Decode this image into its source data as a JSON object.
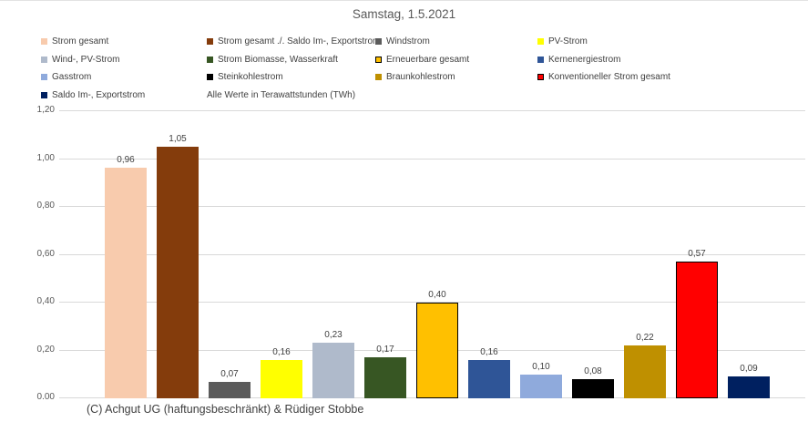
{
  "footer": "(C) Achgut UG (haftungsbeschränkt) & Rüdiger Stobbe",
  "colors": {
    "gridline": "#d9d9d9",
    "title_text": "#595959",
    "axis_text": "#595959",
    "value_label_text": "#404040",
    "legend_text": "#404040",
    "footer_text": "#3f3f3f",
    "bar_border": "#000000"
  },
  "chart_data": {
    "type": "bar",
    "title": "Samstag, 1.5.2021",
    "unit_note": "Alle Werte in Terawattstunden (TWh)",
    "xlabel": "",
    "ylabel": "",
    "ylim": [
      0,
      1.2
    ],
    "yticks": [
      0,
      0.2,
      0.4,
      0.6,
      0.8,
      1.0,
      1.2
    ],
    "ytick_labels": [
      "0,00",
      "0,20",
      "0,40",
      "0,60",
      "0,80",
      "1,00",
      "1,20"
    ],
    "grid": true,
    "legend_position": "top",
    "legend_columns": 4,
    "decimal_style": "comma",
    "series": [
      {
        "name": "Strom gesamt",
        "value": 0.96,
        "label": "0,96",
        "color": "#F8CBAD",
        "border": false
      },
      {
        "name": "Strom gesamt ./. Saldo Im-, Exportstrom",
        "value": 1.05,
        "label": "1,05",
        "color": "#843C0C",
        "border": false
      },
      {
        "name": "Windstrom",
        "value": 0.07,
        "label": "0,07",
        "color": "#5B5B5B",
        "border": false
      },
      {
        "name": "PV-Strom",
        "value": 0.16,
        "label": "0,16",
        "color": "#FFFF00",
        "border": false
      },
      {
        "name": "Wind-, PV-Strom",
        "value": 0.23,
        "label": "0,23",
        "color": "#AFBACB",
        "border": false
      },
      {
        "name": "Strom Biomasse, Wasserkraft",
        "value": 0.17,
        "label": "0,17",
        "color": "#375623",
        "border": false
      },
      {
        "name": "Erneuerbare gesamt",
        "value": 0.4,
        "label": "0,40",
        "color": "#FFC000",
        "border": true
      },
      {
        "name": "Kernenergiestrom",
        "value": 0.16,
        "label": "0,16",
        "color": "#2F5597",
        "border": false
      },
      {
        "name": "Gasstrom",
        "value": 0.1,
        "label": "0,10",
        "color": "#8FAADC",
        "border": false
      },
      {
        "name": "Steinkohlestrom",
        "value": 0.08,
        "label": "0,08",
        "color": "#000000",
        "border": false
      },
      {
        "name": "Braunkohlestrom",
        "value": 0.22,
        "label": "0,22",
        "color": "#BF9000",
        "border": false
      },
      {
        "name": "Konventioneller Strom gesamt",
        "value": 0.57,
        "label": "0,57",
        "color": "#FF0000",
        "border": true
      },
      {
        "name": "Saldo Im-, Exportstrom",
        "value": 0.09,
        "label": "0,09",
        "color": "#002060",
        "border": false
      }
    ]
  }
}
